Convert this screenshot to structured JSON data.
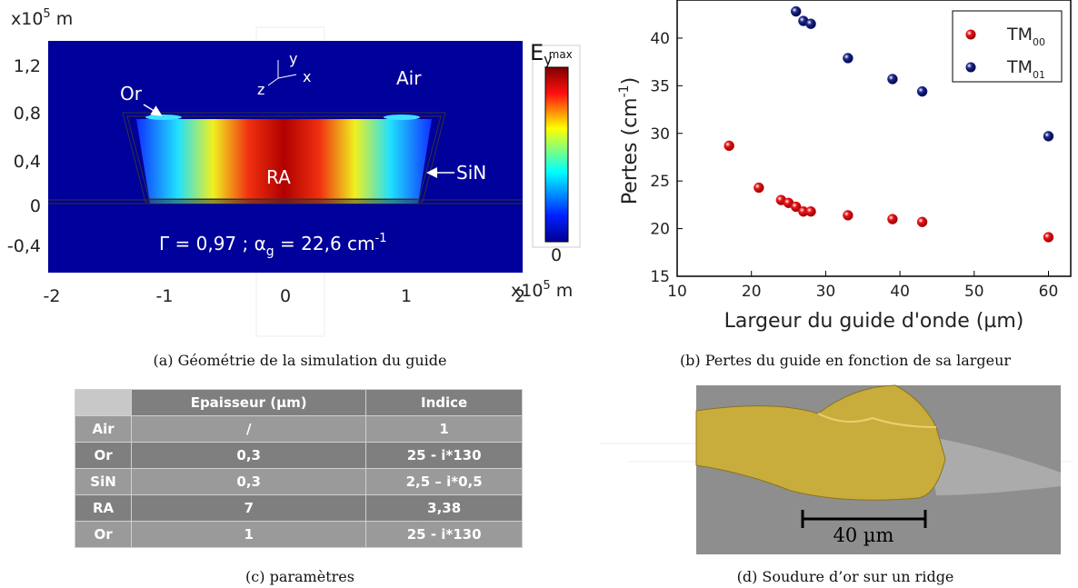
{
  "panel_a": {
    "unit": {
      "base": "x10",
      "exp": "5",
      "suffix": " m"
    },
    "yticks": [
      "1,2",
      "0,8",
      "0,4",
      "0",
      "-0,4"
    ],
    "xticks": [
      "-2",
      "-1",
      "0",
      "1",
      "2"
    ],
    "axes": {
      "y": "y",
      "x": "x",
      "z": "z"
    },
    "labels": {
      "or": "Or",
      "air": "Air",
      "ra": "RA",
      "sin": "SiN"
    },
    "formula": {
      "gamma": "Γ = 0,97 ; α",
      "sub": "g",
      "mid": " = 22,6 cm",
      "sup": "-1"
    },
    "colorbar": {
      "base": "E",
      "sub": "y",
      "sup": "max",
      "min": "0"
    }
  },
  "chart_data": {
    "type": "scatter",
    "x_label": "Largeur du guide d'onde (µm)",
    "y_label": {
      "base": "Pertes (cm",
      "sup": "-1",
      "end": ")"
    },
    "xlim": [
      10,
      63
    ],
    "ylim": [
      15,
      44
    ],
    "xticks": [
      10,
      20,
      30,
      40,
      50,
      60
    ],
    "yticks": [
      15,
      20,
      25,
      30,
      35,
      40
    ],
    "legend": "upper right",
    "series": [
      {
        "name": "TM",
        "name_sub": "00",
        "color": "#e8141a",
        "x": [
          17,
          21,
          24,
          25,
          26,
          27,
          28,
          33,
          39,
          43,
          60
        ],
        "values": [
          28.7,
          24.3,
          23,
          22.7,
          22.3,
          21.8,
          21.8,
          21.4,
          21,
          20.7,
          19.1
        ]
      },
      {
        "name": "TM",
        "name_sub": "01",
        "color": "#1c2a8c",
        "x": [
          26,
          27,
          28,
          33,
          39,
          43,
          60
        ],
        "values": [
          42.8,
          41.8,
          41.5,
          37.9,
          35.7,
          34.4,
          29.7
        ]
      }
    ]
  },
  "table": {
    "header": [
      "",
      "Epaisseur (µm)",
      "Indice"
    ],
    "rows": [
      [
        "Air",
        "/",
        "1"
      ],
      [
        "Or",
        "0,3",
        "25 - i*130"
      ],
      [
        "SiN",
        "0,3",
        "2,5 – i*0,5"
      ],
      [
        "RA",
        "7",
        "3,38"
      ],
      [
        "Or",
        "1",
        "25 - i*130"
      ]
    ]
  },
  "panel_d": {
    "scale_bar": "40 µm"
  },
  "captions": [
    "(a)  Géométrie de la simulation du guide",
    "(b)  Pertes du guide en fonction de sa largeur",
    "(c)  paramètres",
    "(d)  Soudure d’or sur un ridge"
  ]
}
